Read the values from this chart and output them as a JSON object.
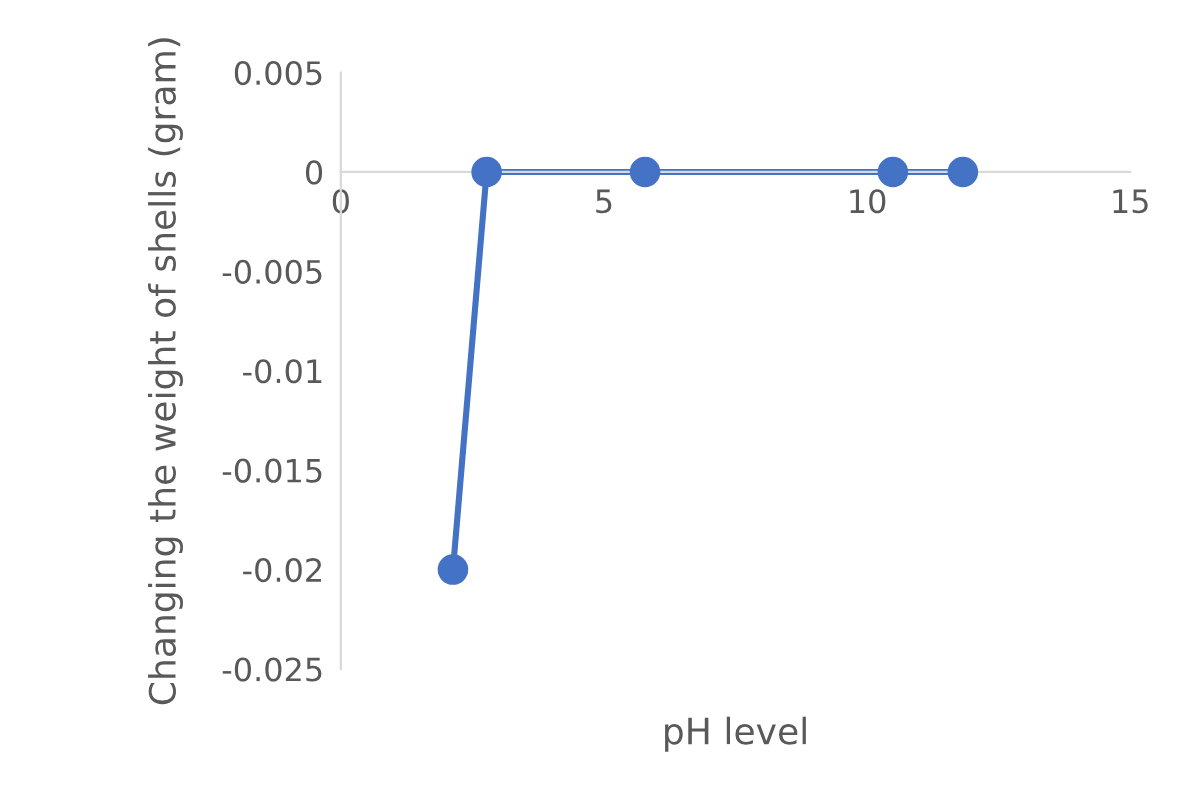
{
  "chart_data": {
    "type": "line",
    "xlabel": "pH level",
    "ylabel": "Changing the weight of shells (gram)",
    "series": [
      {
        "color": "#4472c4",
        "x": [
          2.13,
          2.77,
          5.78,
          10.49,
          11.82
        ],
        "values": [
          -0.02,
          0,
          0,
          0,
          0
        ]
      }
    ],
    "xlim": [
      0,
      15
    ],
    "xticks": [
      0,
      5,
      10,
      15
    ],
    "ylim": [
      -0.025,
      0.005
    ],
    "yticks": [
      0.005,
      0,
      -0.005,
      -0.01,
      -0.015,
      -0.02,
      -0.025
    ],
    "marker": "circle",
    "line_style": "solid",
    "grid": false,
    "legend": false
  }
}
